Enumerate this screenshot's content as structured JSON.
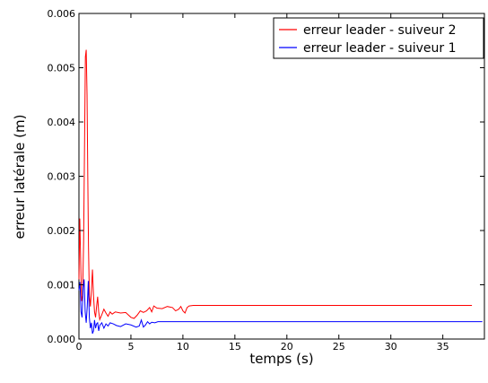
{
  "chart_data": {
    "type": "line",
    "title": "",
    "xlabel": "temps (s)",
    "ylabel": "erreur latérale (m)",
    "xlim": [
      0,
      39
    ],
    "ylim": [
      0,
      0.006
    ],
    "x_ticks": [
      0,
      5,
      10,
      15,
      20,
      25,
      30,
      35
    ],
    "x_tick_labels": [
      "0",
      "5",
      "10",
      "15",
      "20",
      "25",
      "30",
      "35"
    ],
    "y_ticks": [
      0,
      0.001,
      0.002,
      0.003,
      0.004,
      0.005,
      0.006
    ],
    "y_tick_labels": [
      "0.000",
      "0.001",
      "0.002",
      "0.003",
      "0.004",
      "0.005",
      "0.006"
    ],
    "grid": false,
    "legend_position": "top-right",
    "series": [
      {
        "name": "erreur leader - suiveur 2",
        "color": "#ff0000",
        "x": [
          0,
          0.08,
          0.15,
          0.25,
          0.35,
          0.45,
          0.55,
          0.62,
          0.7,
          0.78,
          0.85,
          0.92,
          1.0,
          1.1,
          1.2,
          1.3,
          1.4,
          1.5,
          1.6,
          1.7,
          1.8,
          1.9,
          2.0,
          2.2,
          2.4,
          2.6,
          2.8,
          3.0,
          3.2,
          3.5,
          4.0,
          4.5,
          5.0,
          5.3,
          5.6,
          5.9,
          6.2,
          6.5,
          6.8,
          7.0,
          7.2,
          7.5,
          8.0,
          8.5,
          9.0,
          9.3,
          9.6,
          9.8,
          10.0,
          10.2,
          10.4,
          10.6,
          11.0,
          11.5,
          12,
          15,
          20,
          25,
          30,
          35,
          37.8
        ],
        "y": [
          0.0011,
          0.00222,
          0.0016,
          0.0007,
          0.0008,
          0.0018,
          0.0038,
          0.0052,
          0.00533,
          0.0045,
          0.003,
          0.0017,
          0.0008,
          0.0006,
          0.0009,
          0.00128,
          0.0008,
          0.0005,
          0.0004,
          0.0006,
          0.00078,
          0.0005,
          0.00036,
          0.00045,
          0.00055,
          0.00048,
          0.00042,
          0.0005,
          0.00046,
          0.0005,
          0.00048,
          0.00049,
          0.0004,
          0.00038,
          0.00044,
          0.00052,
          0.00049,
          0.00052,
          0.00058,
          0.0005,
          0.00061,
          0.00057,
          0.00056,
          0.0006,
          0.00058,
          0.00052,
          0.00055,
          0.0006,
          0.00052,
          0.00048,
          0.00058,
          0.00061,
          0.00062,
          0.00062,
          0.00062,
          0.00062,
          0.00062,
          0.00062,
          0.00062,
          0.00062,
          0.00062
        ]
      },
      {
        "name": "erreur leader - suiveur 1",
        "color": "#0000ff",
        "x": [
          0,
          0.1,
          0.2,
          0.3,
          0.4,
          0.5,
          0.6,
          0.7,
          0.8,
          0.9,
          1.0,
          1.1,
          1.2,
          1.3,
          1.4,
          1.5,
          1.6,
          1.7,
          1.8,
          1.9,
          2.0,
          2.2,
          2.4,
          2.6,
          2.8,
          3.0,
          3.3,
          3.6,
          4.0,
          4.5,
          5.0,
          5.5,
          5.8,
          6.0,
          6.2,
          6.4,
          6.6,
          6.8,
          7.0,
          7.3,
          7.6,
          8.0,
          9,
          10,
          15,
          20,
          25,
          30,
          35,
          38.8
        ],
        "y": [
          0.0009,
          0.00105,
          0.0005,
          0.0004,
          0.00095,
          0.0011,
          0.0005,
          0.0003,
          0.0006,
          0.00107,
          0.0004,
          0.0002,
          0.0003,
          0.0001,
          0.00015,
          0.00035,
          0.0002,
          0.00028,
          0.0003,
          0.00015,
          0.00025,
          0.0003,
          0.0002,
          0.00028,
          0.00024,
          0.0003,
          0.00028,
          0.00025,
          0.00023,
          0.00028,
          0.00026,
          0.00022,
          0.00024,
          0.00035,
          0.00022,
          0.00026,
          0.00032,
          0.00028,
          0.00031,
          0.0003,
          0.00032,
          0.00032,
          0.00032,
          0.00032,
          0.00032,
          0.00032,
          0.00032,
          0.00032,
          0.00032,
          0.00032
        ]
      }
    ]
  }
}
